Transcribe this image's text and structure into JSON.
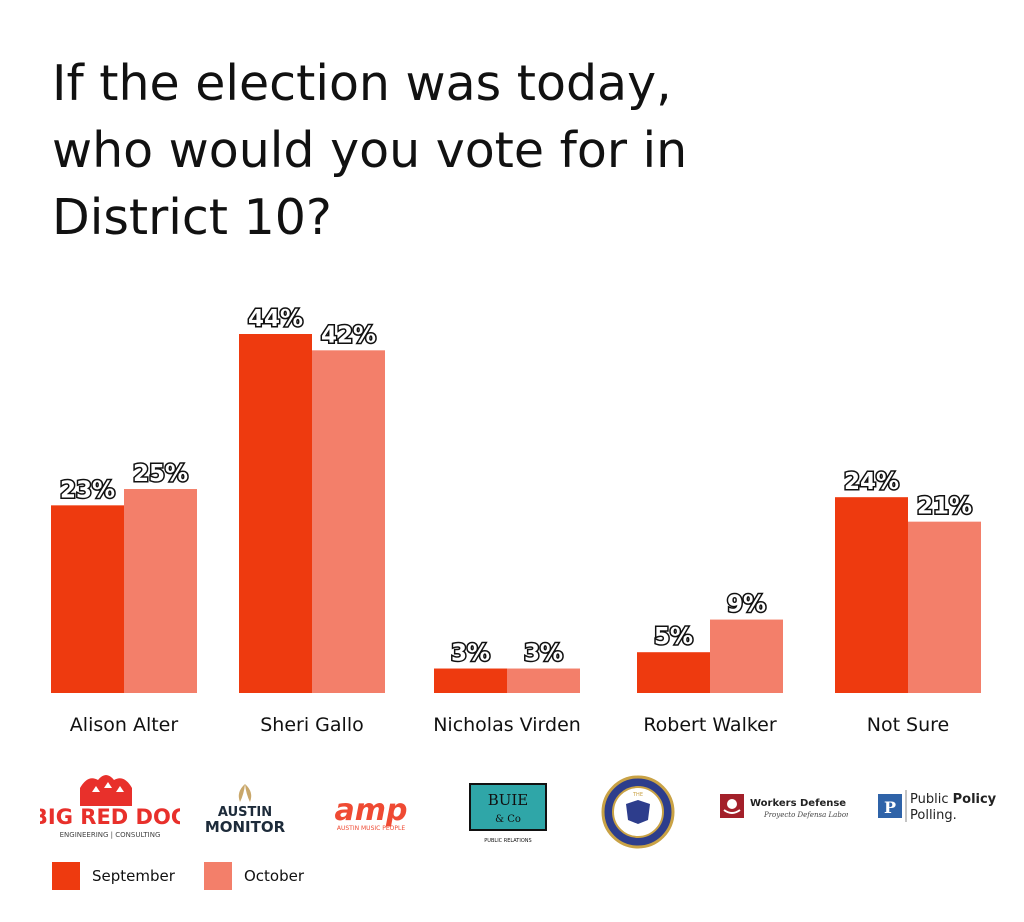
{
  "title_lines": [
    "If the election was today,",
    "who would you vote for in",
    "District 10?"
  ],
  "chart_data": {
    "type": "bar",
    "title": "If the election was today, who would you vote for in District 10?",
    "categories": [
      "Alison Alter",
      "Sheri Gallo",
      "Nicholas Virden",
      "Robert Walker",
      "Not Sure"
    ],
    "series": [
      {
        "name": "September",
        "values": [
          23,
          44,
          3,
          5,
          24
        ],
        "labels": [
          "23%",
          "44%",
          "3%",
          "5%",
          "24%"
        ],
        "color": "#ee3a0f"
      },
      {
        "name": "October",
        "values": [
          25,
          42,
          3,
          9,
          21
        ],
        "labels": [
          "25%",
          "42%",
          "3%",
          "9%",
          "21%"
        ],
        "color": "#f37f6a"
      }
    ],
    "ylim": [
      0,
      50
    ],
    "grid": false,
    "legend": "bottom-left"
  },
  "legend": [
    {
      "label": "September",
      "color": "#ee3a0f"
    },
    {
      "label": "October",
      "color": "#f37f6a"
    }
  ],
  "sponsors": {
    "bigreddog": {
      "name": "BIG RED DOG",
      "sub": "ENGINEERING | CONSULTING"
    },
    "austin_monitor": {
      "line1": "AUSTIN",
      "line2": "MONITOR"
    },
    "amp": {
      "name": "amp",
      "sub": "AUSTIN MUSIC PEOPLE"
    },
    "buie": {
      "line1": "BUIE",
      "line2": "& Co",
      "sub": "PUBLIC RELATIONS"
    },
    "seal": {
      "text": "THE"
    },
    "wdp": {
      "name": "Workers Defense Project",
      "sub": "Proyecto Defensa Laboral"
    },
    "ppp": {
      "line1_a": "Public ",
      "line1_b": "Policy",
      "line2": "Polling."
    }
  }
}
